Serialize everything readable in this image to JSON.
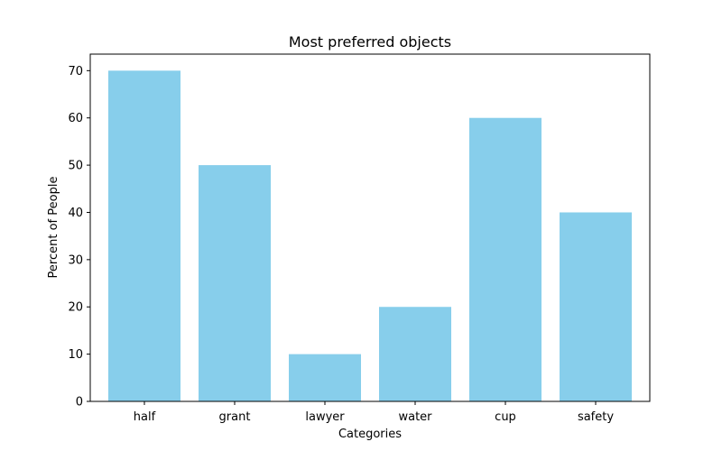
{
  "chart_data": {
    "type": "bar",
    "title": "Most preferred objects",
    "xlabel": "Categories",
    "ylabel": "Percent of People",
    "categories": [
      "half",
      "grant",
      "lawyer",
      "water",
      "cup",
      "safety"
    ],
    "values": [
      70,
      50,
      10,
      20,
      60,
      40
    ],
    "ylim": [
      0,
      73.5
    ],
    "yticks": [
      0,
      10,
      20,
      30,
      40,
      50,
      60,
      70
    ],
    "bar_color": "#87ceeb",
    "grid": false,
    "legend": "none"
  }
}
